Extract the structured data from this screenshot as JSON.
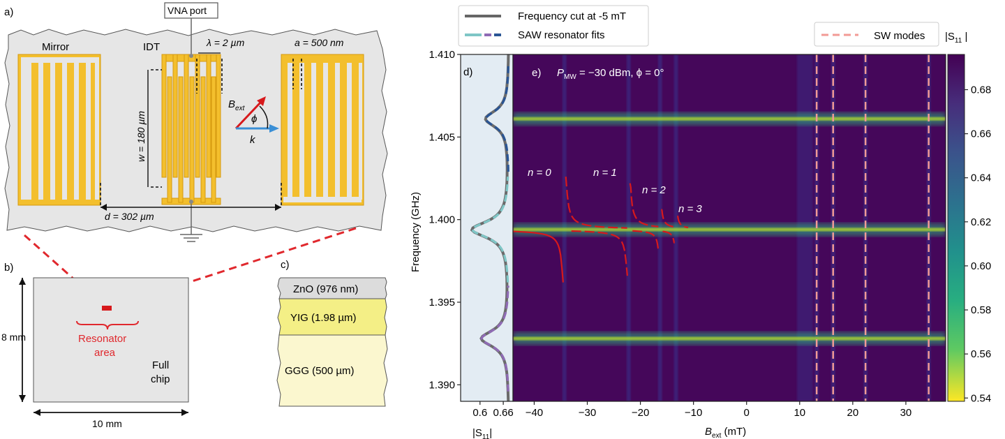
{
  "panels": {
    "a": "a)",
    "b": "b)",
    "c": "c)",
    "d": "d)",
    "e": "e)"
  },
  "device": {
    "vna_port": "VNA port",
    "mirror": "Mirror",
    "idt": "IDT",
    "lambda": "λ = 2 µm",
    "a_spacing": "a = 500 nm",
    "w_height": "w = 180 µm",
    "d_distance": "d = 302 µm",
    "b_ext": "B",
    "b_ext_sub": "ext",
    "phi": "ϕ",
    "k": "k",
    "colors": {
      "metal": "#f3bf2d",
      "metal_edge": "#d59a10",
      "substrate": "#e6e6e6",
      "field_arrow": "#d7191c",
      "k_arrow": "#3a8fd6"
    }
  },
  "chip": {
    "height": "8 mm",
    "width": "10 mm",
    "resonator_label_1": "Resonator",
    "resonator_label_2": "area",
    "full_1": "Full",
    "full_2": "chip"
  },
  "stack": {
    "layers": [
      "ZnO (976 nm)",
      "YIG (1.98 µm)",
      "GGG (500 µm)"
    ],
    "colors": [
      "#dcdcdc",
      "#f4ef86",
      "#fbf7cf"
    ]
  },
  "legend_left": {
    "items": [
      "Frequency cut at -5 mT",
      "SAW resonator fits"
    ]
  },
  "legend_right": {
    "items": [
      "SW modes"
    ]
  },
  "colorbar": {
    "label_main": "|S",
    "label_sub": "11",
    "label_end": " |",
    "ticks": [
      "0.68",
      "0.66",
      "0.64",
      "0.62",
      "0.60",
      "0.58",
      "0.56",
      "0.54"
    ]
  },
  "annotation": {
    "power": "P",
    "power_sub": "MW",
    "power_value": " = −30 dBm,  ϕ = 0°",
    "modes": [
      "n = 0",
      "n = 1",
      "n = 2",
      "n = 3"
    ]
  },
  "chart_data": {
    "type": "heatmap",
    "xlabel_main": "B",
    "xlabel_sub": "ext",
    "xlabel_unit": "  (mT)",
    "ylabel": "Frequency (GHz)",
    "xlim": [
      -44,
      37.5
    ],
    "ylim": [
      1.389,
      1.41
    ],
    "xticks": [
      -40,
      -30,
      -20,
      -10,
      0,
      10,
      20,
      30
    ],
    "xtick_labels": [
      "−40",
      "−30",
      "−20",
      "−10",
      "0",
      "10",
      "20",
      "30"
    ],
    "yticks": [
      1.39,
      1.395,
      1.4,
      1.405,
      1.41
    ],
    "ytick_labels": [
      "1.390",
      "1.395",
      "1.400",
      "1.405",
      "1.410"
    ],
    "saw_modes_ghz": [
      1.4061,
      1.3994,
      1.3928
    ],
    "sw_mode_fields_mT": [
      13.2,
      16.3,
      22.4,
      34.3
    ],
    "red_fit_fields_mT": [
      -34.3,
      -22.2,
      -16.3,
      -13.3
    ],
    "colors": {
      "background": "#45075a",
      "band_dark": "#3a2a82",
      "peak": "#2db07a",
      "peak_core": "#b8de29",
      "sw_line": "#f29a95",
      "fit": "#d7191c"
    },
    "cut_panel": {
      "xlabel_main": "|S",
      "xlabel_sub": "11",
      "xlabel_end": "|",
      "xticks": [
        0.6,
        0.66
      ],
      "xtick_labels": [
        "0.6",
        "0.66"
      ],
      "xlim": [
        0.55,
        0.685
      ],
      "dips": [
        {
          "f": 1.4061,
          "depth": 0.615,
          "color": "#2a5594"
        },
        {
          "f": 1.3994,
          "depth": 0.58,
          "color": "#7fc6c6"
        },
        {
          "f": 1.3928,
          "depth": 0.604,
          "color": "#8f6bb5"
        }
      ],
      "baseline": 0.675
    }
  }
}
